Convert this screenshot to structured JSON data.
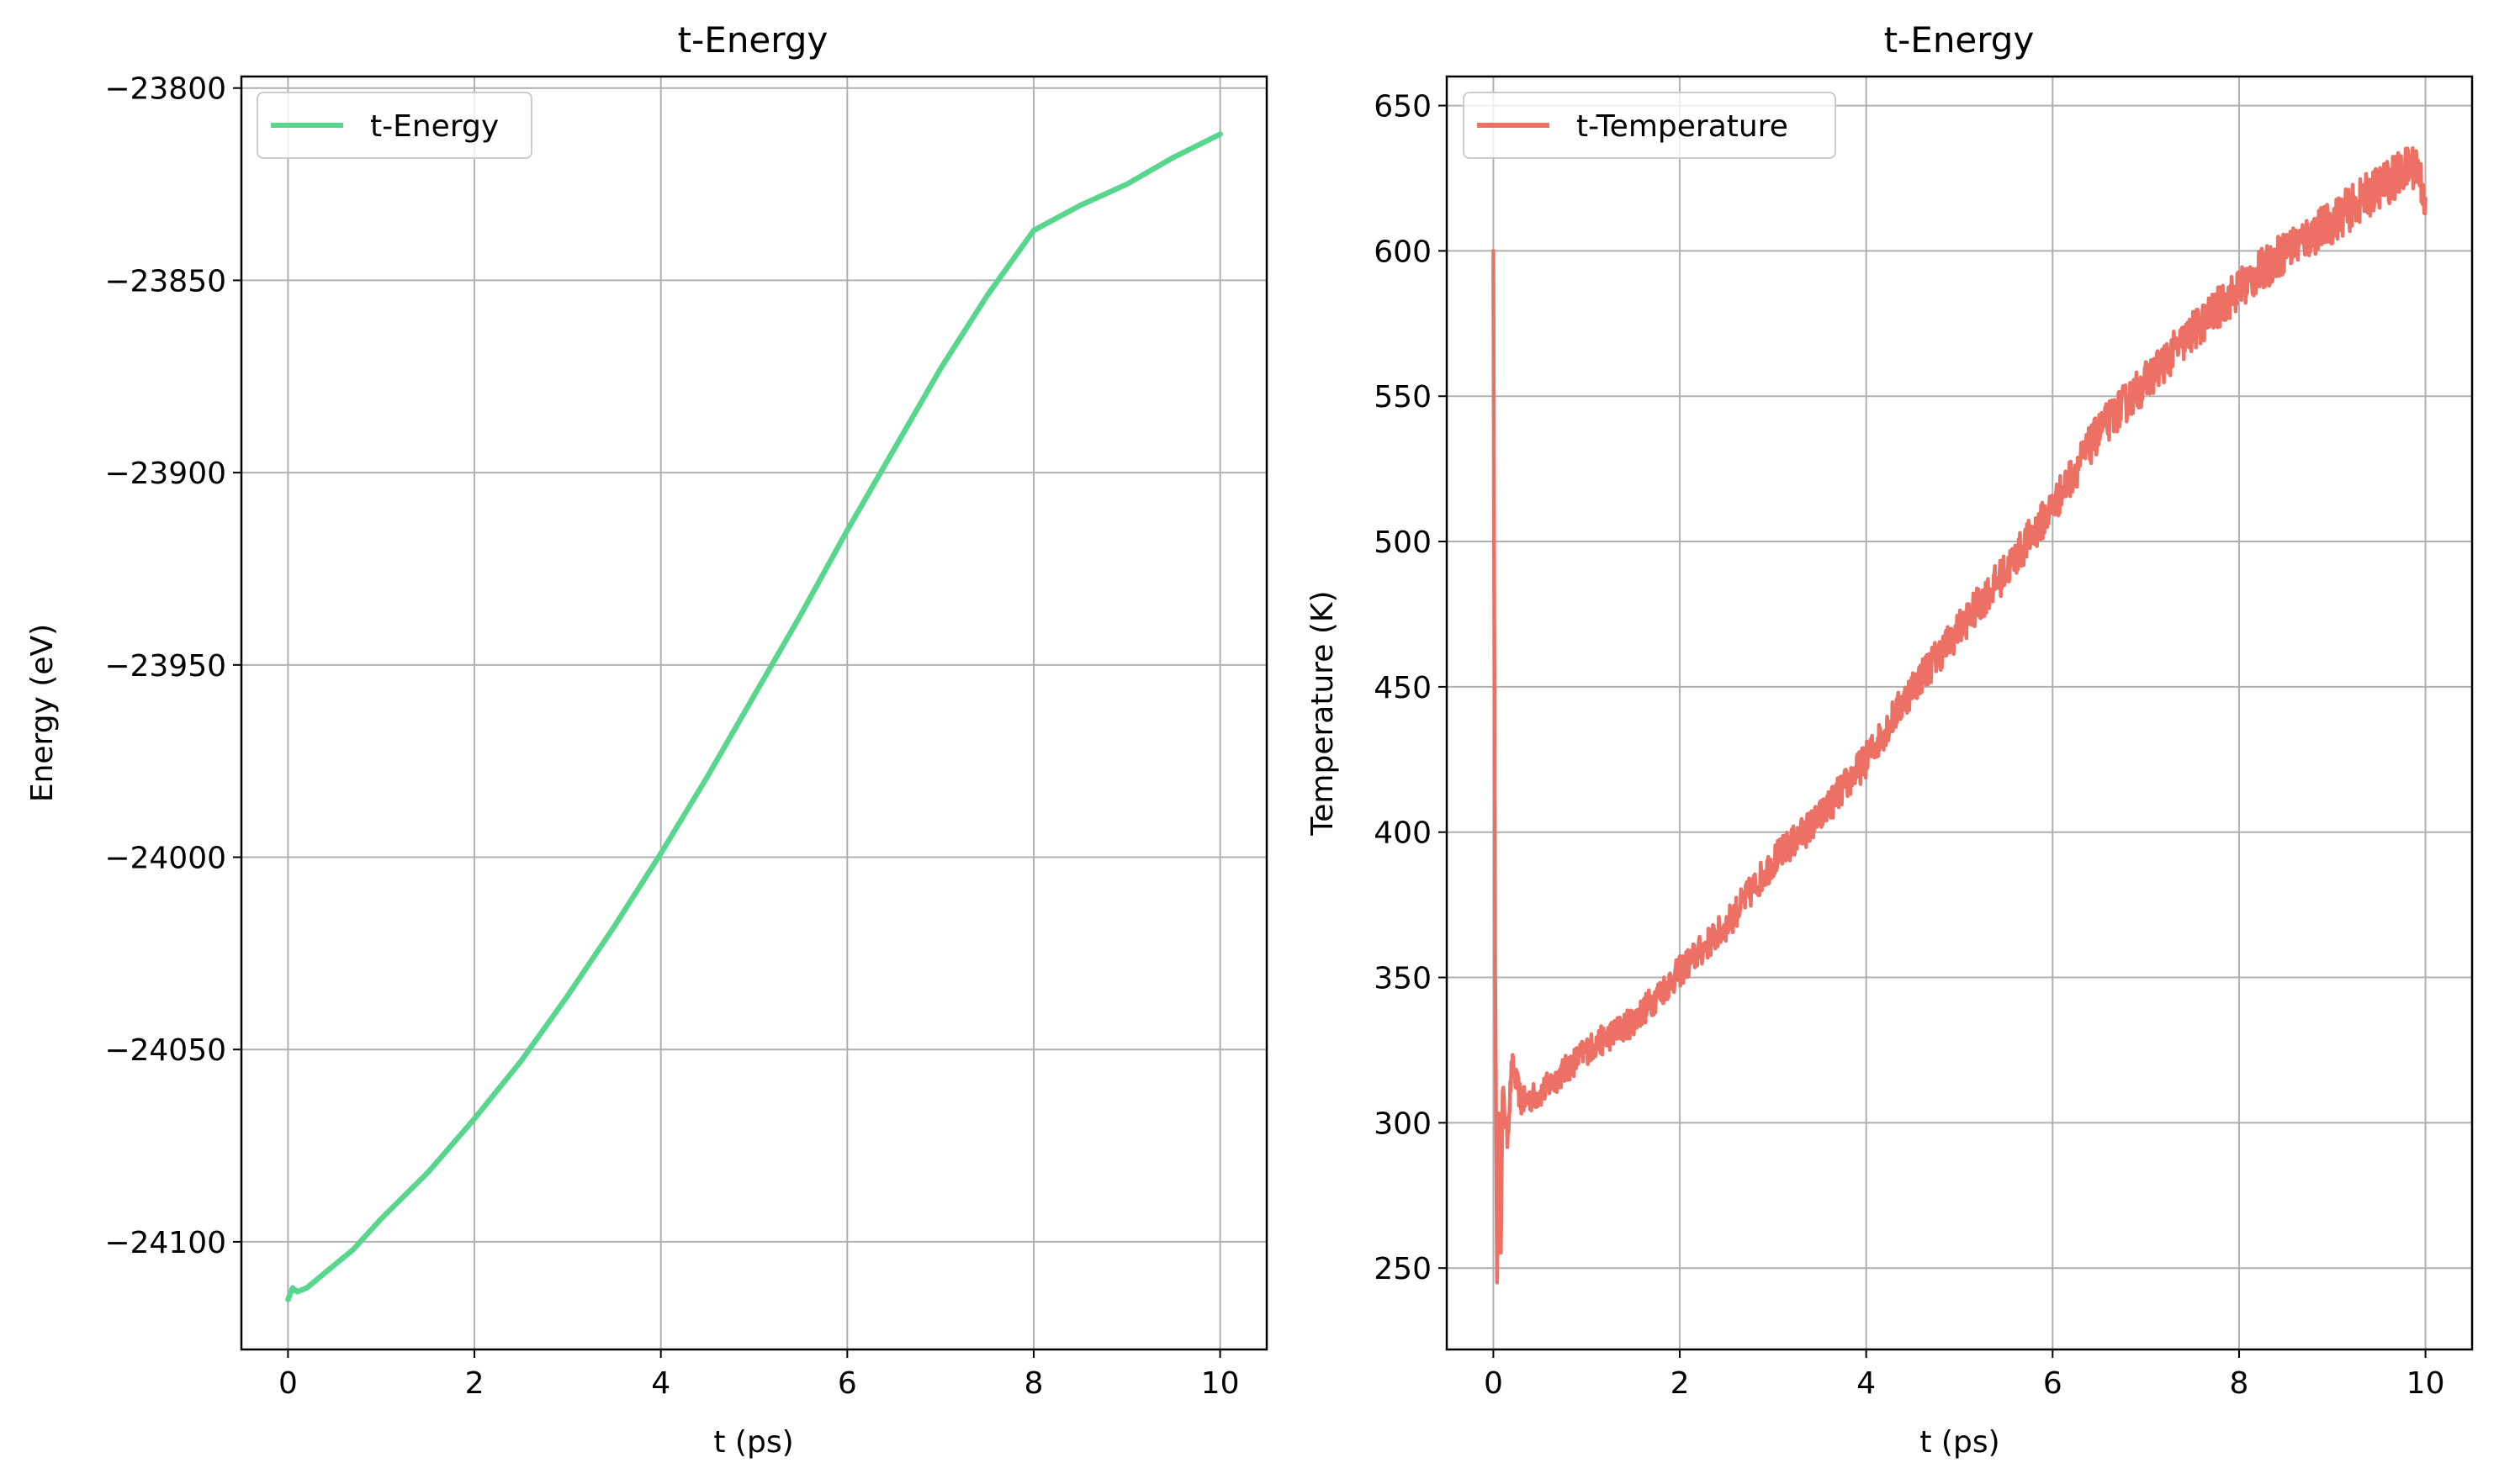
{
  "chart_data": [
    {
      "type": "line",
      "title": "t-Energy",
      "xlabel": "t (ps)",
      "ylabel": "Energy (eV)",
      "xlim": [
        -0.5,
        10.5
      ],
      "ylim": [
        -24128,
        -23797
      ],
      "grid": true,
      "legend_position": "top-left",
      "x_ticks": [
        0,
        2,
        4,
        6,
        8,
        10
      ],
      "x_tick_labels": [
        "0",
        "2",
        "4",
        "6",
        "8",
        "10"
      ],
      "y_ticks": [
        -24100,
        -24050,
        -24000,
        -23950,
        -23900,
        -23850,
        -23800
      ],
      "y_tick_labels": [
        "−24100",
        "−24050",
        "−24000",
        "−23950",
        "−23900",
        "−23850",
        "−23800"
      ],
      "series": [
        {
          "name": "t-Energy",
          "color": "#58d68d",
          "x": [
            0,
            0.05,
            0.1,
            0.2,
            0.3,
            0.4,
            0.5,
            0.7,
            1.0,
            1.5,
            2.0,
            2.5,
            3.0,
            3.5,
            4.0,
            4.5,
            5.0,
            5.5,
            6.0,
            6.5,
            7.0,
            7.5,
            8.0,
            8.5,
            9.0,
            9.5,
            10.0
          ],
          "y": [
            -24115,
            -24112,
            -24113,
            -24112,
            -24110,
            -24108,
            -24106,
            -24102,
            -24094,
            -24082,
            -24068,
            -24053,
            -24036,
            -24018,
            -23999,
            -23979,
            -23958,
            -23937,
            -23915,
            -23894,
            -23873,
            -23854,
            -23837,
            -23830.5,
            -23825,
            -23818,
            -23812
          ]
        }
      ]
    },
    {
      "type": "line",
      "title": "t-Energy",
      "xlabel": "t (ps)",
      "ylabel": "Temperature (K)",
      "xlim": [
        -0.5,
        10.5
      ],
      "ylim": [
        222,
        660
      ],
      "grid": true,
      "legend_position": "top-left",
      "x_ticks": [
        0,
        2,
        4,
        6,
        8,
        10
      ],
      "x_tick_labels": [
        "0",
        "2",
        "4",
        "6",
        "8",
        "10"
      ],
      "y_ticks": [
        250,
        300,
        350,
        400,
        450,
        500,
        550,
        600,
        650
      ],
      "y_tick_labels": [
        "250",
        "300",
        "350",
        "400",
        "450",
        "500",
        "550",
        "600",
        "650"
      ],
      "series": [
        {
          "name": "t-Temperature",
          "color": "#ec7063",
          "x": [
            0,
            0.02,
            0.04,
            0.06,
            0.08,
            0.1,
            0.15,
            0.2,
            0.3,
            0.5,
            1.0,
            1.5,
            2.0,
            2.5,
            3.0,
            3.5,
            4.0,
            4.5,
            5.0,
            5.5,
            6.0,
            6.5,
            7.0,
            7.5,
            8.0,
            8.5,
            9.0,
            9.5,
            9.9,
            10.0
          ],
          "y": [
            600,
            350,
            245,
            300,
            260,
            310,
            295,
            320,
            307,
            310,
            325,
            335,
            352,
            368,
            390,
            405,
            425,
            450,
            470,
            490,
            512,
            538,
            555,
            572,
            587,
            600,
            610,
            622,
            630,
            618
          ],
          "noise_amplitude": 8
        }
      ]
    }
  ]
}
